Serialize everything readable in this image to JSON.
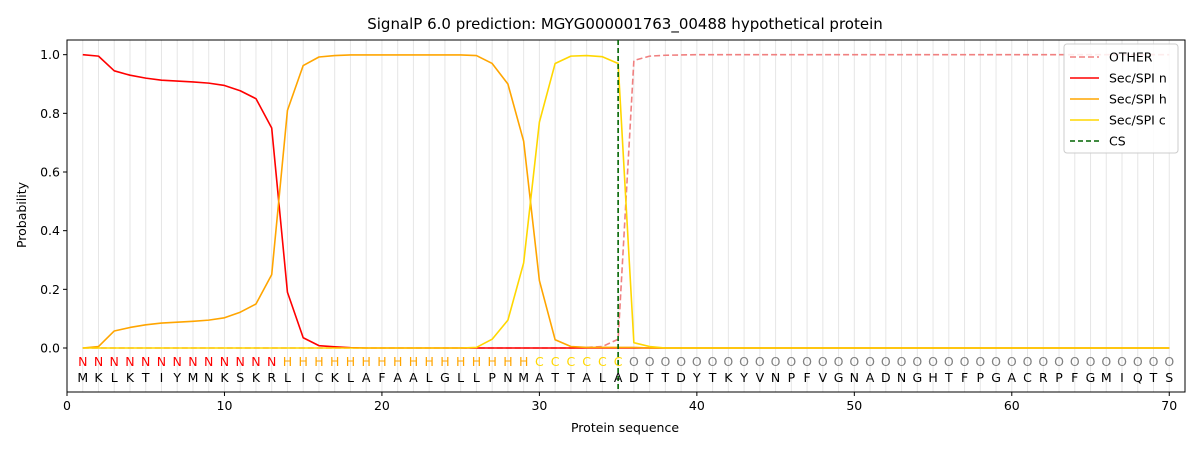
{
  "chart_data": {
    "type": "line",
    "title": "SignalP 6.0 prediction: MGYG000001763_00488 hypothetical protein",
    "xlabel": "Protein sequence",
    "ylabel": "Probability",
    "xlim": [
      0,
      71
    ],
    "ylim": [
      -0.15,
      1.05
    ],
    "xticks": [
      0,
      10,
      20,
      30,
      40,
      50,
      60,
      70
    ],
    "yticks": [
      0.0,
      0.2,
      0.4,
      0.6,
      0.8,
      1.0
    ],
    "grid": "vertical lines at each residue",
    "legend_position": "top-right",
    "sequence": [
      "M",
      "K",
      "L",
      "K",
      "T",
      "I",
      "Y",
      "M",
      "N",
      "K",
      "S",
      "K",
      "R",
      "L",
      "I",
      "C",
      "K",
      "L",
      "A",
      "F",
      "A",
      "A",
      "L",
      "G",
      "L",
      "L",
      "P",
      "N",
      "M",
      "A",
      "T",
      "T",
      "A",
      "L",
      "A",
      "D",
      "T",
      "T",
      "D",
      "Y",
      "T",
      "K",
      "Y",
      "V",
      "N",
      "P",
      "F",
      "V",
      "G",
      "N",
      "A",
      "D",
      "N",
      "G",
      "H",
      "T",
      "F",
      "P",
      "G",
      "A",
      "C",
      "R",
      "P",
      "F",
      "G",
      "M",
      "I",
      "Q",
      "T",
      "S"
    ],
    "labels": [
      "N",
      "N",
      "N",
      "N",
      "N",
      "N",
      "N",
      "N",
      "N",
      "N",
      "N",
      "N",
      "N",
      "H",
      "H",
      "H",
      "H",
      "H",
      "H",
      "H",
      "H",
      "H",
      "H",
      "H",
      "H",
      "H",
      "H",
      "H",
      "H",
      "C",
      "C",
      "C",
      "C",
      "C",
      "C",
      "O",
      "O",
      "O",
      "O",
      "O",
      "O",
      "O",
      "O",
      "O",
      "O",
      "O",
      "O",
      "O",
      "O",
      "O",
      "O",
      "O",
      "O",
      "O",
      "O",
      "O",
      "O",
      "O",
      "O",
      "O",
      "O",
      "O",
      "O",
      "O",
      "O",
      "O",
      "O",
      "O",
      "O",
      "O"
    ],
    "label_colors": {
      "N": "#ff0000",
      "H": "#ffa500",
      "C": "#ffd700",
      "O": "#808080"
    },
    "cleavage_site": 35,
    "series": [
      {
        "name": "OTHER",
        "color": "#f08080",
        "dash": true,
        "values": [
          0,
          0,
          0,
          0,
          0,
          0,
          0,
          0,
          0,
          0,
          0,
          0,
          0,
          0,
          0,
          0,
          0,
          0,
          0,
          0,
          0,
          0,
          0,
          0,
          0,
          0,
          0,
          0,
          0,
          0,
          0,
          0,
          0.002,
          0.005,
          0.03,
          0.98,
          0.995,
          0.998,
          0.999,
          1,
          1,
          1,
          1,
          1,
          1,
          1,
          1,
          1,
          1,
          1,
          1,
          1,
          1,
          1,
          1,
          1,
          1,
          1,
          1,
          1,
          1,
          1,
          1,
          1,
          1,
          1,
          1,
          1,
          1,
          1
        ]
      },
      {
        "name": "Sec/SPI n",
        "color": "#ff0000",
        "dash": false,
        "values": [
          1.0,
          0.995,
          0.945,
          0.93,
          0.92,
          0.913,
          0.91,
          0.907,
          0.903,
          0.895,
          0.877,
          0.85,
          0.75,
          0.19,
          0.035,
          0.008,
          0.004,
          0.001,
          0,
          0,
          0,
          0,
          0,
          0,
          0,
          0,
          0,
          0,
          0,
          0,
          0,
          0,
          0,
          0,
          0,
          0,
          0,
          0,
          0,
          0,
          0,
          0,
          0,
          0,
          0,
          0,
          0,
          0,
          0,
          0,
          0,
          0,
          0,
          0,
          0,
          0,
          0,
          0,
          0,
          0,
          0,
          0,
          0,
          0,
          0,
          0,
          0,
          0,
          0,
          0
        ]
      },
      {
        "name": "Sec/SPI h",
        "color": "#ffa500",
        "dash": false,
        "values": [
          0,
          0.005,
          0.058,
          0.07,
          0.079,
          0.085,
          0.088,
          0.091,
          0.095,
          0.103,
          0.122,
          0.15,
          0.25,
          0.81,
          0.963,
          0.992,
          0.997,
          0.999,
          0.999,
          0.999,
          0.999,
          0.999,
          0.999,
          0.999,
          0.999,
          0.997,
          0.97,
          0.9,
          0.705,
          0.23,
          0.028,
          0.005,
          0.002,
          0.002,
          0.002,
          0.002,
          0,
          0,
          0,
          0,
          0,
          0,
          0,
          0,
          0,
          0,
          0,
          0,
          0,
          0,
          0,
          0,
          0,
          0,
          0,
          0,
          0,
          0,
          0,
          0,
          0,
          0,
          0,
          0,
          0,
          0,
          0,
          0,
          0,
          0
        ]
      },
      {
        "name": "Sec/SPI c",
        "color": "#ffd700",
        "dash": false,
        "values": [
          0,
          0,
          0,
          0,
          0,
          0,
          0,
          0,
          0,
          0,
          0,
          0,
          0,
          0,
          0,
          0,
          0,
          0,
          0,
          0,
          0,
          0,
          0,
          0,
          0,
          0.002,
          0.03,
          0.095,
          0.29,
          0.77,
          0.97,
          0.995,
          0.997,
          0.993,
          0.97,
          0.018,
          0.005,
          0,
          0,
          0,
          0,
          0,
          0,
          0,
          0,
          0,
          0,
          0,
          0,
          0,
          0,
          0,
          0,
          0,
          0,
          0,
          0,
          0,
          0,
          0,
          0,
          0,
          0,
          0,
          0,
          0,
          0,
          0,
          0,
          0
        ]
      }
    ],
    "cs_legend": {
      "name": "CS",
      "color": "#006400"
    }
  }
}
